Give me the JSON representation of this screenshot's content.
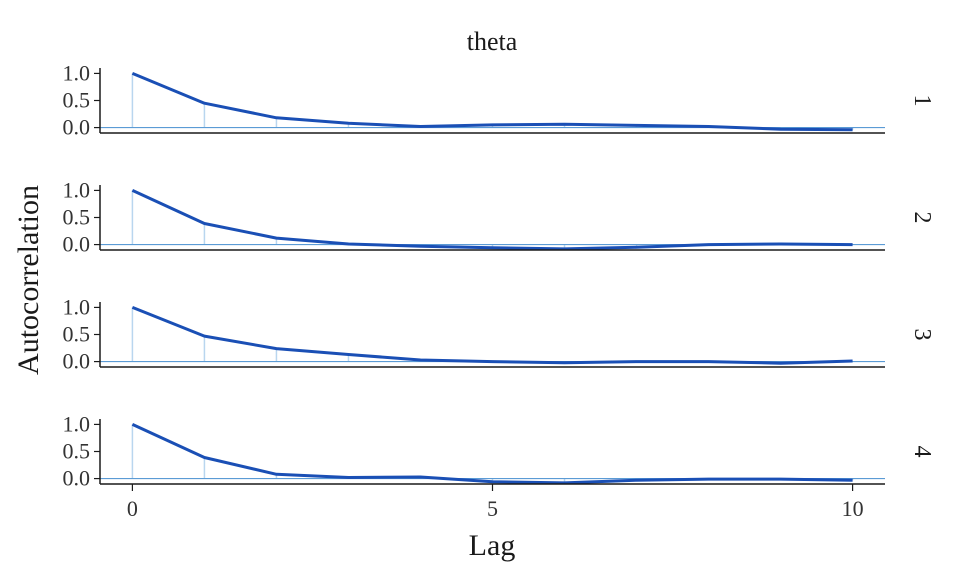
{
  "chart_data": {
    "type": "line",
    "title": "theta",
    "xlabel": "Lag",
    "ylabel": "Autocorrelation",
    "xlim": [
      -0.45,
      10.45
    ],
    "ylim": [
      -0.1,
      1.1
    ],
    "x_ticks": [
      0,
      5,
      10
    ],
    "y_ticks": [
      0.0,
      0.5,
      1.0
    ],
    "y_tick_labels": [
      "0.0",
      "0.5",
      "1.0"
    ],
    "x": [
      0,
      1,
      2,
      3,
      4,
      5,
      6,
      7,
      8,
      9,
      10
    ],
    "grid": false,
    "legend": "none",
    "colors": {
      "line": "#1a4fb5",
      "stem": "#b9d6ef",
      "zero_line": "#5b9bd5",
      "axis": "#1a1a1a"
    },
    "panels": [
      {
        "label": "1",
        "values": [
          1.0,
          0.45,
          0.18,
          0.08,
          0.02,
          0.05,
          0.06,
          0.04,
          0.02,
          -0.03,
          -0.04
        ]
      },
      {
        "label": "2",
        "values": [
          1.0,
          0.39,
          0.12,
          0.01,
          -0.03,
          -0.06,
          -0.08,
          -0.05,
          0.0,
          0.01,
          0.0
        ]
      },
      {
        "label": "3",
        "values": [
          1.0,
          0.47,
          0.24,
          0.13,
          0.03,
          0.0,
          -0.02,
          0.0,
          0.0,
          -0.03,
          0.01
        ]
      },
      {
        "label": "4",
        "values": [
          1.0,
          0.39,
          0.08,
          0.02,
          0.03,
          -0.06,
          -0.08,
          -0.03,
          -0.01,
          -0.01,
          -0.03
        ]
      }
    ]
  }
}
